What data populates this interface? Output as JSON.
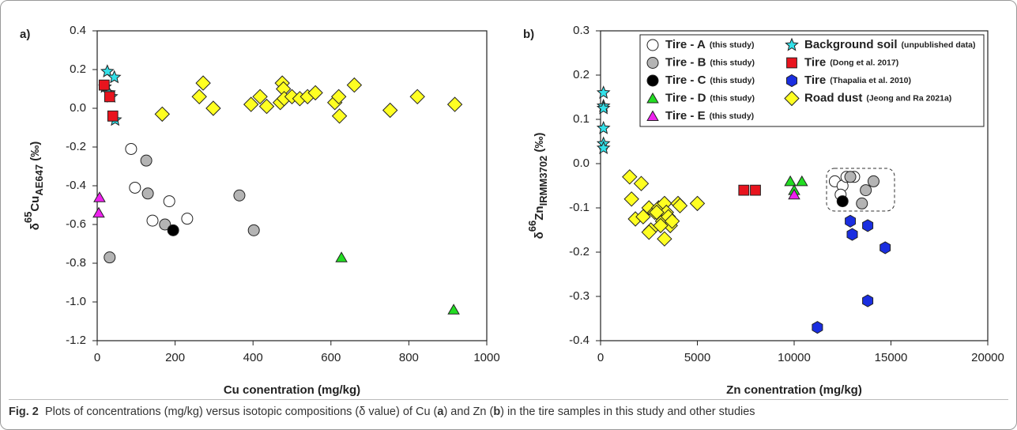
{
  "chart_data": [
    {
      "type": "scatter",
      "panel_label": "a)",
      "xlabel": "Cu conentration (mg/kg)",
      "ylabel": {
        "pre": "δ",
        "sup": "65",
        "base": "Cu",
        "sub": "AE647",
        "post": " (‰)"
      },
      "xlim": [
        0,
        1000
      ],
      "xticks": [
        0,
        200,
        400,
        600,
        800,
        1000
      ],
      "ylim": [
        -1.2,
        0.4
      ],
      "yticks": [
        -1.2,
        {
          "value": -1.0,
          "label": "-1.0"
        },
        -0.8,
        -0.6,
        -0.4,
        -0.2,
        {
          "value": 0,
          "label": "0.0"
        },
        0.2,
        0.4
      ],
      "legend": false,
      "series": [
        {
          "marker": "circle",
          "color": "#ffffff",
          "x": [
            87,
            97,
            142,
            185,
            231
          ],
          "values": [
            -0.21,
            -0.41,
            -0.58,
            -0.48,
            -0.57
          ]
        },
        {
          "marker": "circle",
          "color": "#b4b4b4",
          "x": [
            126,
            130,
            174,
            32,
            365,
            402
          ],
          "values": [
            -0.27,
            -0.44,
            -0.6,
            -0.77,
            -0.45,
            -0.63
          ]
        },
        {
          "marker": "circle",
          "color": "#000000",
          "x": [
            195
          ],
          "values": [
            -0.63
          ]
        },
        {
          "marker": "triangle",
          "color": "#22dd22",
          "x": [
            627,
            915
          ],
          "values": [
            -0.77,
            -1.04
          ]
        },
        {
          "marker": "triangle",
          "color": "#ee22ee",
          "x": [
            6,
            4
          ],
          "values": [
            -0.46,
            -0.54
          ]
        },
        {
          "marker": "star",
          "color": "#33e0e8",
          "x": [
            26,
            44,
            20,
            30,
            36,
            46
          ],
          "values": [
            0.19,
            0.16,
            0.11,
            0.08,
            0.06,
            -0.06
          ]
        },
        {
          "marker": "square",
          "color": "#e8141e",
          "x": [
            18,
            32,
            40
          ],
          "values": [
            0.12,
            0.06,
            -0.04
          ]
        },
        {
          "marker": "diamond",
          "color": "#ffff22",
          "x": [
            167,
            262,
            272,
            298,
            395,
            418,
            435,
            470,
            475,
            478,
            480,
            500,
            520,
            540,
            560,
            610,
            620,
            622,
            660,
            752,
            822,
            918
          ],
          "values": [
            -0.03,
            0.06,
            0.13,
            0.0,
            0.02,
            0.06,
            0.01,
            0.03,
            0.13,
            0.1,
            0.05,
            0.06,
            0.05,
            0.06,
            0.08,
            0.03,
            0.06,
            -0.04,
            0.12,
            -0.01,
            0.06,
            0.02
          ]
        }
      ]
    },
    {
      "type": "scatter",
      "panel_label": "b)",
      "xlabel": "Zn conentration (mg/kg)",
      "ylabel": {
        "pre": "δ",
        "sup": "66",
        "base": "Zn",
        "sub": "IRMM3702",
        "post": " (‰)"
      },
      "xlim": [
        0,
        20000
      ],
      "xticks": [
        0,
        5000,
        10000,
        15000,
        20000
      ],
      "ylim": [
        -0.4,
        0.3
      ],
      "yticks": [
        -0.4,
        -0.3,
        -0.2,
        -0.1,
        {
          "value": 0,
          "label": "0.0"
        },
        0.1,
        0.2,
        0.3
      ],
      "legend": "top-right",
      "series": [
        {
          "name": "Tire - A",
          "source": "(this study)",
          "marker": "circle",
          "color": "#ffffff",
          "x": [
            12100,
            12500,
            12700,
            13100,
            12400
          ],
          "values": [
            -0.04,
            -0.05,
            -0.03,
            -0.03,
            -0.07
          ]
        },
        {
          "name": "Tire - B",
          "source": "(this study)",
          "marker": "circle",
          "color": "#b4b4b4",
          "x": [
            12900,
            13700,
            13500,
            14100
          ],
          "values": [
            -0.03,
            -0.06,
            -0.09,
            -0.04
          ]
        },
        {
          "name": "Tire - C",
          "source": "(this study)",
          "marker": "circle",
          "color": "#000000",
          "x": [
            12500
          ],
          "values": [
            -0.085
          ]
        },
        {
          "name": "Tire - D",
          "source": "(this study)",
          "marker": "triangle",
          "color": "#22dd22",
          "x": [
            9800,
            10400,
            10000
          ],
          "values": [
            -0.04,
            -0.04,
            -0.06
          ]
        },
        {
          "name": "Tire - E",
          "source": "(this study)",
          "marker": "triangle",
          "color": "#ee22ee",
          "x": [
            10000
          ],
          "values": [
            -0.07
          ]
        },
        {
          "name": "Background soil",
          "source": "(unpublished data)",
          "marker": "star",
          "color": "#33e0e8",
          "x": [
            150,
            150,
            150,
            150,
            150,
            150
          ],
          "values": [
            0.16,
            0.13,
            0.125,
            0.08,
            0.045,
            0.035
          ]
        },
        {
          "name": "Tire",
          "source": "(Dong et al. 2017)",
          "marker": "square",
          "color": "#e8141e",
          "x": [
            7400,
            8000
          ],
          "values": [
            -0.06,
            -0.06
          ]
        },
        {
          "name": "Tire",
          "source": "(Thapalia et al. 2010)",
          "marker": "hexagon",
          "color": "#1a2ee0",
          "x": [
            12900,
            13000,
            13800,
            14700,
            13800,
            11200
          ],
          "values": [
            -0.13,
            -0.16,
            -0.14,
            -0.19,
            -0.31,
            -0.37
          ]
        },
        {
          "name": "Road dust",
          "source": "(Jeong and Ra 2021a)",
          "marker": "diamond",
          "color": "#ffff22",
          "x": [
            1500,
            2100,
            1600,
            1800,
            2200,
            2500,
            2600,
            2500,
            2800,
            3000,
            3200,
            3300,
            3300,
            3400,
            3500,
            3600,
            3700,
            4000,
            4100,
            5000,
            3100,
            2900
          ],
          "values": [
            -0.03,
            -0.045,
            -0.08,
            -0.125,
            -0.12,
            -0.1,
            -0.15,
            -0.155,
            -0.11,
            -0.1,
            -0.13,
            -0.17,
            -0.09,
            -0.11,
            -0.12,
            -0.14,
            -0.13,
            -0.09,
            -0.095,
            -0.09,
            -0.14,
            -0.11
          ]
        }
      ]
    }
  ],
  "caption": {
    "label": "Fig. 2",
    "parts": [
      "Plots of concentrations (mg/kg) versus isotopic compositions (δ value) of Cu (",
      "a",
      ") and Zn (",
      "b",
      ") in the tire samples in this study and other studies"
    ]
  }
}
